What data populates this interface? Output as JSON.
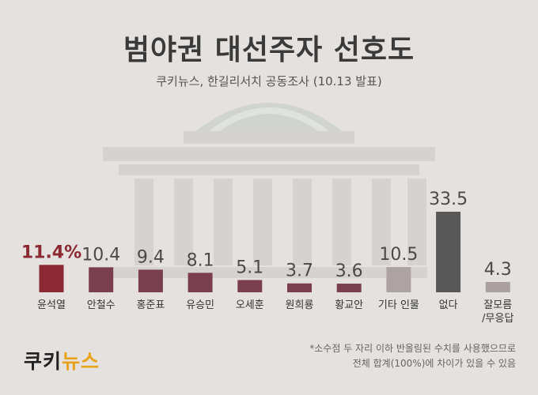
{
  "header": {
    "title": "범야권 대선주자 선호도",
    "subtitle": "쿠키뉴스, 한길리서치 공동조사 (10.13 발표)"
  },
  "logo": {
    "part1": "쿠키",
    "part2": "뉴스"
  },
  "footnote": {
    "line1": "*소수점 두 자리 이하 반올림된 수치를 사용했으므로",
    "line2": "전체 합계(100%)에 차이가 있을 수 있음"
  },
  "colors": {
    "background": "#e4e1de",
    "candidate": "#7a3f4e",
    "highlight": "#8c2a33",
    "other": "#aea3a3",
    "none": "#585858",
    "dontknow": "#aaa0a0"
  },
  "chart_data": {
    "type": "bar",
    "title": "범야권 대선주자 선호도",
    "subtitle": "쿠키뉴스, 한길리서치 공동조사 (10.13 발표)",
    "categories": [
      "윤석열",
      "안철수",
      "홍준표",
      "유승민",
      "오세훈",
      "원희룡",
      "황교안",
      "기타 인물",
      "없다",
      "잘모름/무응답"
    ],
    "category_lines": [
      [
        "윤석열"
      ],
      [
        "안철수"
      ],
      [
        "홍준표"
      ],
      [
        "유승민"
      ],
      [
        "오세훈"
      ],
      [
        "원희룡"
      ],
      [
        "황교안"
      ],
      [
        "기타 인물"
      ],
      [
        "없다"
      ],
      [
        "잘모름",
        "/무응답"
      ]
    ],
    "values": [
      11.4,
      10.4,
      9.4,
      8.1,
      5.1,
      3.7,
      3.6,
      10.5,
      33.5,
      4.3
    ],
    "value_labels": [
      "11.4%",
      "10.4",
      "9.4",
      "8.1",
      "5.1",
      "3.7",
      "3.6",
      "10.5",
      "33.5",
      "4.3"
    ],
    "bar_color_keys": [
      "highlight",
      "candidate",
      "candidate",
      "candidate",
      "candidate",
      "candidate",
      "candidate",
      "other",
      "none",
      "dontknow"
    ],
    "highlight_index": 0,
    "xlabel": "",
    "ylabel": "",
    "ylim": [
      0,
      33.5
    ],
    "grid": false,
    "legend": "none"
  }
}
